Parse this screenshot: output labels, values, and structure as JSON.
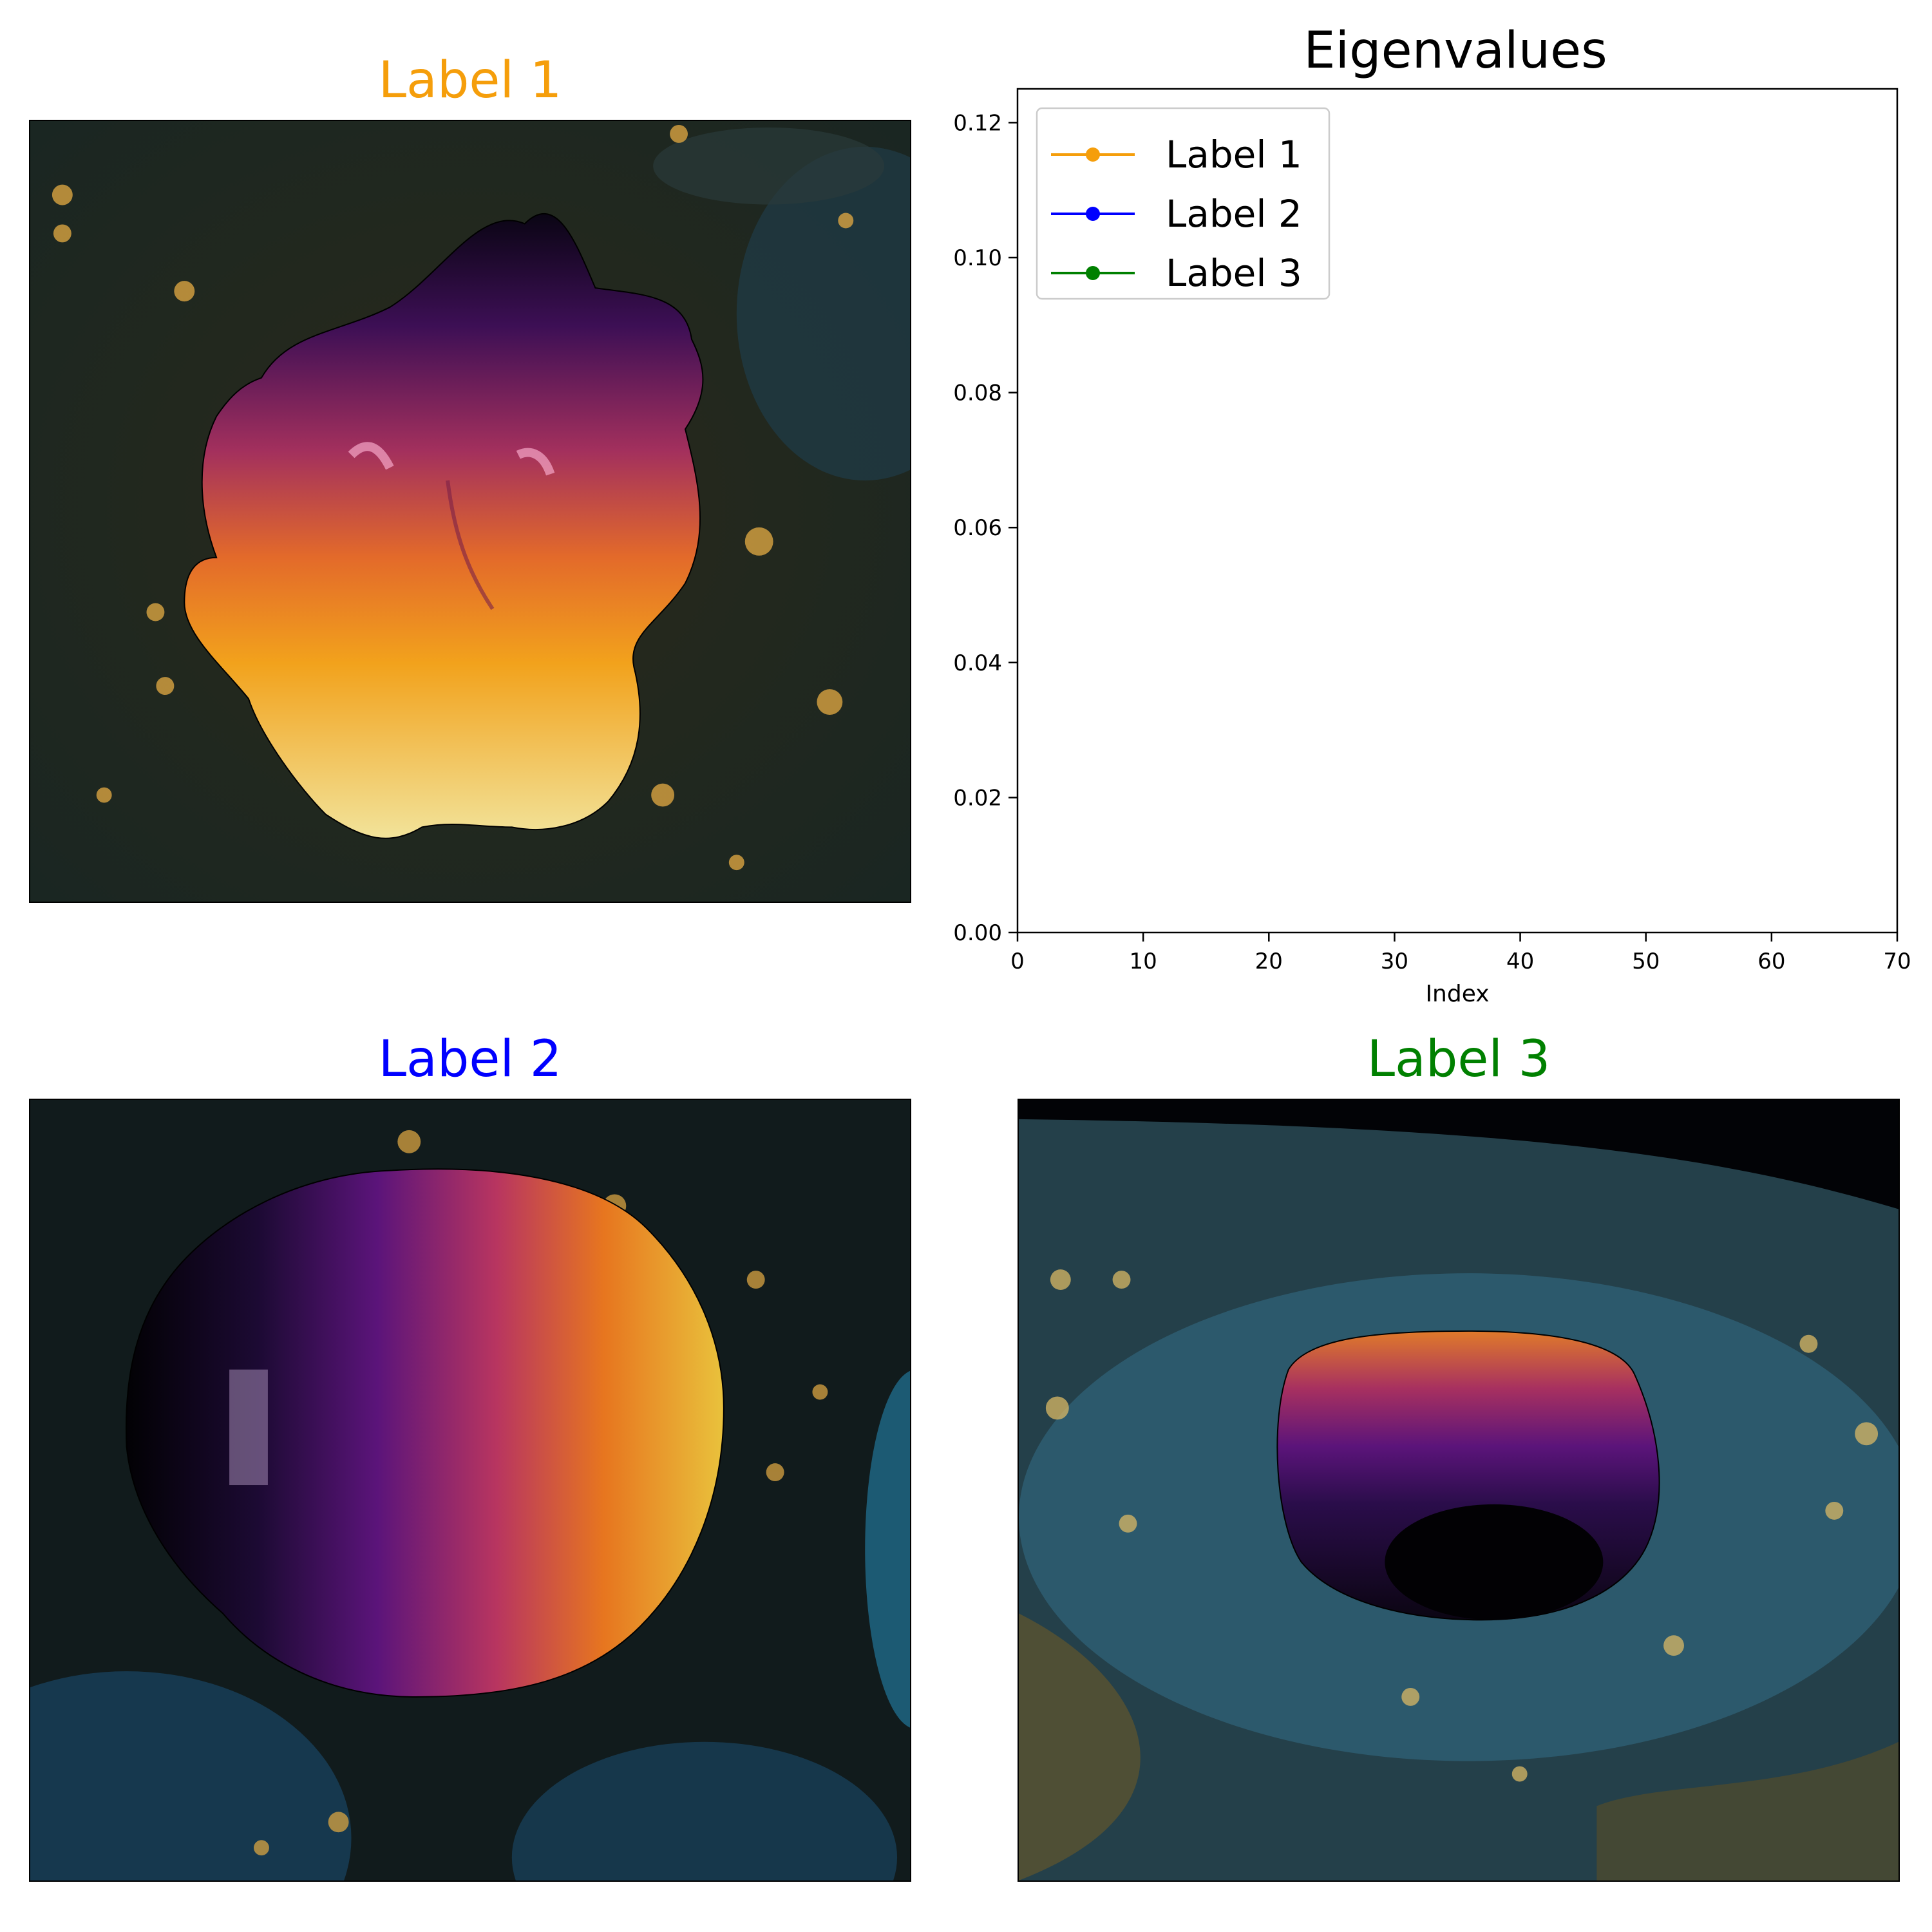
{
  "panels": [
    {
      "title": "Label 1",
      "color": "#f59e0b"
    },
    {
      "title": "Label 2",
      "color": "#0000ff"
    },
    {
      "title": "Label 3",
      "color": "#008000"
    }
  ],
  "chart_data": {
    "type": "line",
    "title": "Eigenvalues",
    "xlabel": "Index",
    "ylabel": "",
    "xlim": [
      0,
      70
    ],
    "ylim": [
      0,
      0.125
    ],
    "xticks": [
      0,
      10,
      20,
      30,
      40,
      50,
      60,
      70
    ],
    "yticks": [
      0.0,
      0.02,
      0.04,
      0.06,
      0.08,
      0.1,
      0.12
    ],
    "ytick_labels": [
      "0.00",
      "0.02",
      "0.04",
      "0.06",
      "0.08",
      "0.10",
      "0.12"
    ],
    "legend_position": "top-left",
    "grid": false,
    "series": [
      {
        "name": "Label 1",
        "color": "#f59e0b",
        "marker": "circle",
        "x": [],
        "y": []
      },
      {
        "name": "Label 2",
        "color": "#0000ff",
        "marker": "circle",
        "x": [],
        "y": []
      },
      {
        "name": "Label 3",
        "color": "#008000",
        "marker": "circle",
        "x": [],
        "y": []
      }
    ]
  }
}
